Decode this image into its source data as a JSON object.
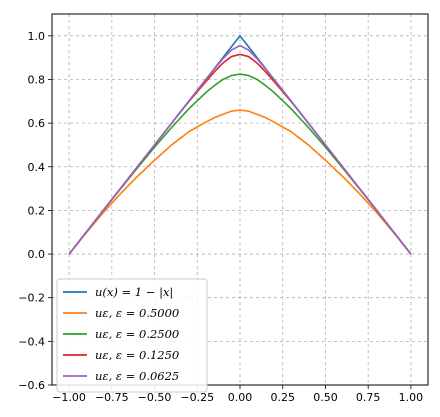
{
  "chart_data": {
    "type": "line",
    "xlim": [
      -1.1,
      1.1
    ],
    "ylim": [
      -0.6,
      1.1
    ],
    "grid": true,
    "grid_style": "dashed",
    "legend_position": "lower-left",
    "x_ticks": [
      -1.0,
      -0.75,
      -0.5,
      -0.25,
      0.0,
      0.25,
      0.5,
      0.75,
      1.0
    ],
    "x_tick_labels": [
      "−1.00",
      "−0.75",
      "−0.50",
      "−0.25",
      "0.00",
      "0.25",
      "0.50",
      "0.75",
      "1.00"
    ],
    "y_ticks": [
      -0.6,
      -0.4,
      -0.2,
      0.0,
      0.2,
      0.4,
      0.6,
      0.8,
      1.0
    ],
    "y_tick_labels": [
      "−0.6",
      "−0.4",
      "−0.2",
      "0.0",
      "0.2",
      "0.4",
      "0.6",
      "0.8",
      "1.0"
    ],
    "x": [
      -1.0,
      -0.9,
      -0.8,
      -0.7,
      -0.6,
      -0.5,
      -0.4,
      -0.3,
      -0.2,
      -0.15,
      -0.1,
      -0.05,
      0.0,
      0.05,
      0.1,
      0.15,
      0.2,
      0.3,
      0.4,
      0.5,
      0.6,
      0.7,
      0.8,
      0.9,
      1.0
    ],
    "series": [
      {
        "name": "u(x) = 1 − |x|",
        "color": "#1f77b4",
        "values": [
          0.0,
          0.1,
          0.2,
          0.3,
          0.4,
          0.5,
          0.6,
          0.7,
          0.8,
          0.85,
          0.9,
          0.95,
          1.0,
          0.95,
          0.9,
          0.85,
          0.8,
          0.7,
          0.6,
          0.5,
          0.4,
          0.3,
          0.2,
          0.1,
          0.0
        ]
      },
      {
        "name": "uε, ε = 0.5000",
        "color": "#ff7f0e",
        "values": [
          0.0,
          0.097,
          0.19,
          0.276,
          0.356,
          0.43,
          0.5,
          0.56,
          0.605,
          0.625,
          0.64,
          0.655,
          0.66,
          0.655,
          0.64,
          0.625,
          0.605,
          0.56,
          0.5,
          0.43,
          0.356,
          0.276,
          0.19,
          0.097,
          0.0
        ]
      },
      {
        "name": "uε, ε = 0.2500",
        "color": "#2ca02c",
        "values": [
          0.0,
          0.1,
          0.2,
          0.298,
          0.395,
          0.49,
          0.58,
          0.665,
          0.74,
          0.772,
          0.8,
          0.818,
          0.825,
          0.818,
          0.8,
          0.772,
          0.74,
          0.665,
          0.58,
          0.49,
          0.395,
          0.298,
          0.2,
          0.1,
          0.0
        ]
      },
      {
        "name": "uε, ε = 0.1250",
        "color": "#d62728",
        "values": [
          0.0,
          0.1,
          0.2,
          0.3,
          0.4,
          0.5,
          0.6,
          0.698,
          0.79,
          0.835,
          0.875,
          0.905,
          0.915,
          0.905,
          0.875,
          0.835,
          0.79,
          0.698,
          0.6,
          0.5,
          0.4,
          0.3,
          0.2,
          0.1,
          0.0
        ]
      },
      {
        "name": "uε, ε = 0.0625",
        "color": "#9467bd",
        "values": [
          0.0,
          0.1,
          0.2,
          0.3,
          0.4,
          0.5,
          0.6,
          0.7,
          0.8,
          0.848,
          0.895,
          0.935,
          0.955,
          0.935,
          0.895,
          0.848,
          0.8,
          0.7,
          0.6,
          0.5,
          0.4,
          0.3,
          0.2,
          0.1,
          0.0
        ]
      }
    ]
  }
}
